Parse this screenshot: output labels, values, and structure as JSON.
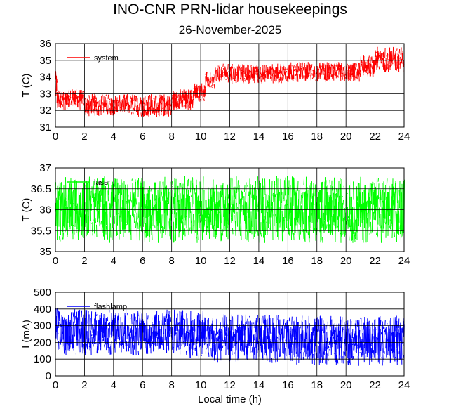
{
  "title": "INO-CNR PRN-lidar housekeepings",
  "subtitle": "26-November-2025",
  "chart_data": [
    {
      "type": "line",
      "ylabel": "T (C)",
      "xlabel": "",
      "xlim": [
        0,
        24
      ],
      "ylim": [
        31,
        36
      ],
      "xticks": [
        "0",
        "2",
        "4",
        "6",
        "8",
        "10",
        "12",
        "14",
        "16",
        "18",
        "20",
        "22",
        "24"
      ],
      "yticks": [
        "31",
        "32",
        "33",
        "34",
        "35",
        "36"
      ],
      "grid": true,
      "legend": "top-left",
      "series": [
        {
          "name": "system",
          "color": "#ff0000",
          "segments": [
            {
              "x0": 0.0,
              "x1": 0.1,
              "lo": 32.5,
              "hi": 34.5
            },
            {
              "x0": 0.1,
              "x1": 2.0,
              "lo": 32.0,
              "hi": 33.3
            },
            {
              "x0": 2.0,
              "x1": 3.0,
              "lo": 31.6,
              "hi": 33.0
            },
            {
              "x0": 3.0,
              "x1": 5.0,
              "lo": 31.7,
              "hi": 33.0
            },
            {
              "x0": 5.0,
              "x1": 8.0,
              "lo": 31.6,
              "hi": 33.0
            },
            {
              "x0": 8.0,
              "x1": 9.5,
              "lo": 32.0,
              "hi": 33.3
            },
            {
              "x0": 9.5,
              "x1": 10.3,
              "lo": 32.5,
              "hi": 33.7
            },
            {
              "x0": 10.3,
              "x1": 11.0,
              "lo": 33.3,
              "hi": 34.3
            },
            {
              "x0": 11.0,
              "x1": 16.0,
              "lo": 33.6,
              "hi": 34.8
            },
            {
              "x0": 16.0,
              "x1": 21.0,
              "lo": 33.7,
              "hi": 34.9
            },
            {
              "x0": 21.0,
              "x1": 22.0,
              "lo": 34.0,
              "hi": 35.3
            },
            {
              "x0": 22.0,
              "x1": 24.0,
              "lo": 34.3,
              "hi": 35.8
            }
          ]
        }
      ]
    },
    {
      "type": "line",
      "ylabel": "T (C)",
      "xlabel": "",
      "xlim": [
        0,
        24
      ],
      "ylim": [
        35,
        37
      ],
      "xticks": [
        "0",
        "2",
        "4",
        "6",
        "8",
        "10",
        "12",
        "14",
        "16",
        "18",
        "20",
        "22",
        "24"
      ],
      "yticks": [
        "35",
        "35.5",
        "36",
        "36.5",
        "37"
      ],
      "grid": true,
      "legend": "top-left",
      "series": [
        {
          "name": "laser",
          "color": "#00ff00",
          "segments": [
            {
              "x0": 0.0,
              "x1": 24.0,
              "lo": 35.2,
              "hi": 36.8
            }
          ]
        }
      ]
    },
    {
      "type": "line",
      "ylabel": "I (mA)",
      "xlabel": "Local time (h)",
      "xlim": [
        0,
        24
      ],
      "ylim": [
        0,
        500
      ],
      "xticks": [
        "0",
        "2",
        "4",
        "6",
        "8",
        "10",
        "12",
        "14",
        "16",
        "18",
        "20",
        "22",
        "24"
      ],
      "yticks": [
        "0",
        "100",
        "200",
        "300",
        "400",
        "500"
      ],
      "grid": true,
      "legend": "top-left",
      "series": [
        {
          "name": "flashlamp",
          "color": "#0000ff",
          "segments": [
            {
              "x0": 0.0,
              "x1": 0.2,
              "lo": 150,
              "hi": 450
            },
            {
              "x0": 0.2,
              "x1": 9.0,
              "lo": 120,
              "hi": 400
            },
            {
              "x0": 9.0,
              "x1": 10.5,
              "lo": 100,
              "hi": 390
            },
            {
              "x0": 10.5,
              "x1": 16.0,
              "lo": 80,
              "hi": 370
            },
            {
              "x0": 16.0,
              "x1": 24.0,
              "lo": 60,
              "hi": 360
            }
          ]
        }
      ]
    }
  ]
}
